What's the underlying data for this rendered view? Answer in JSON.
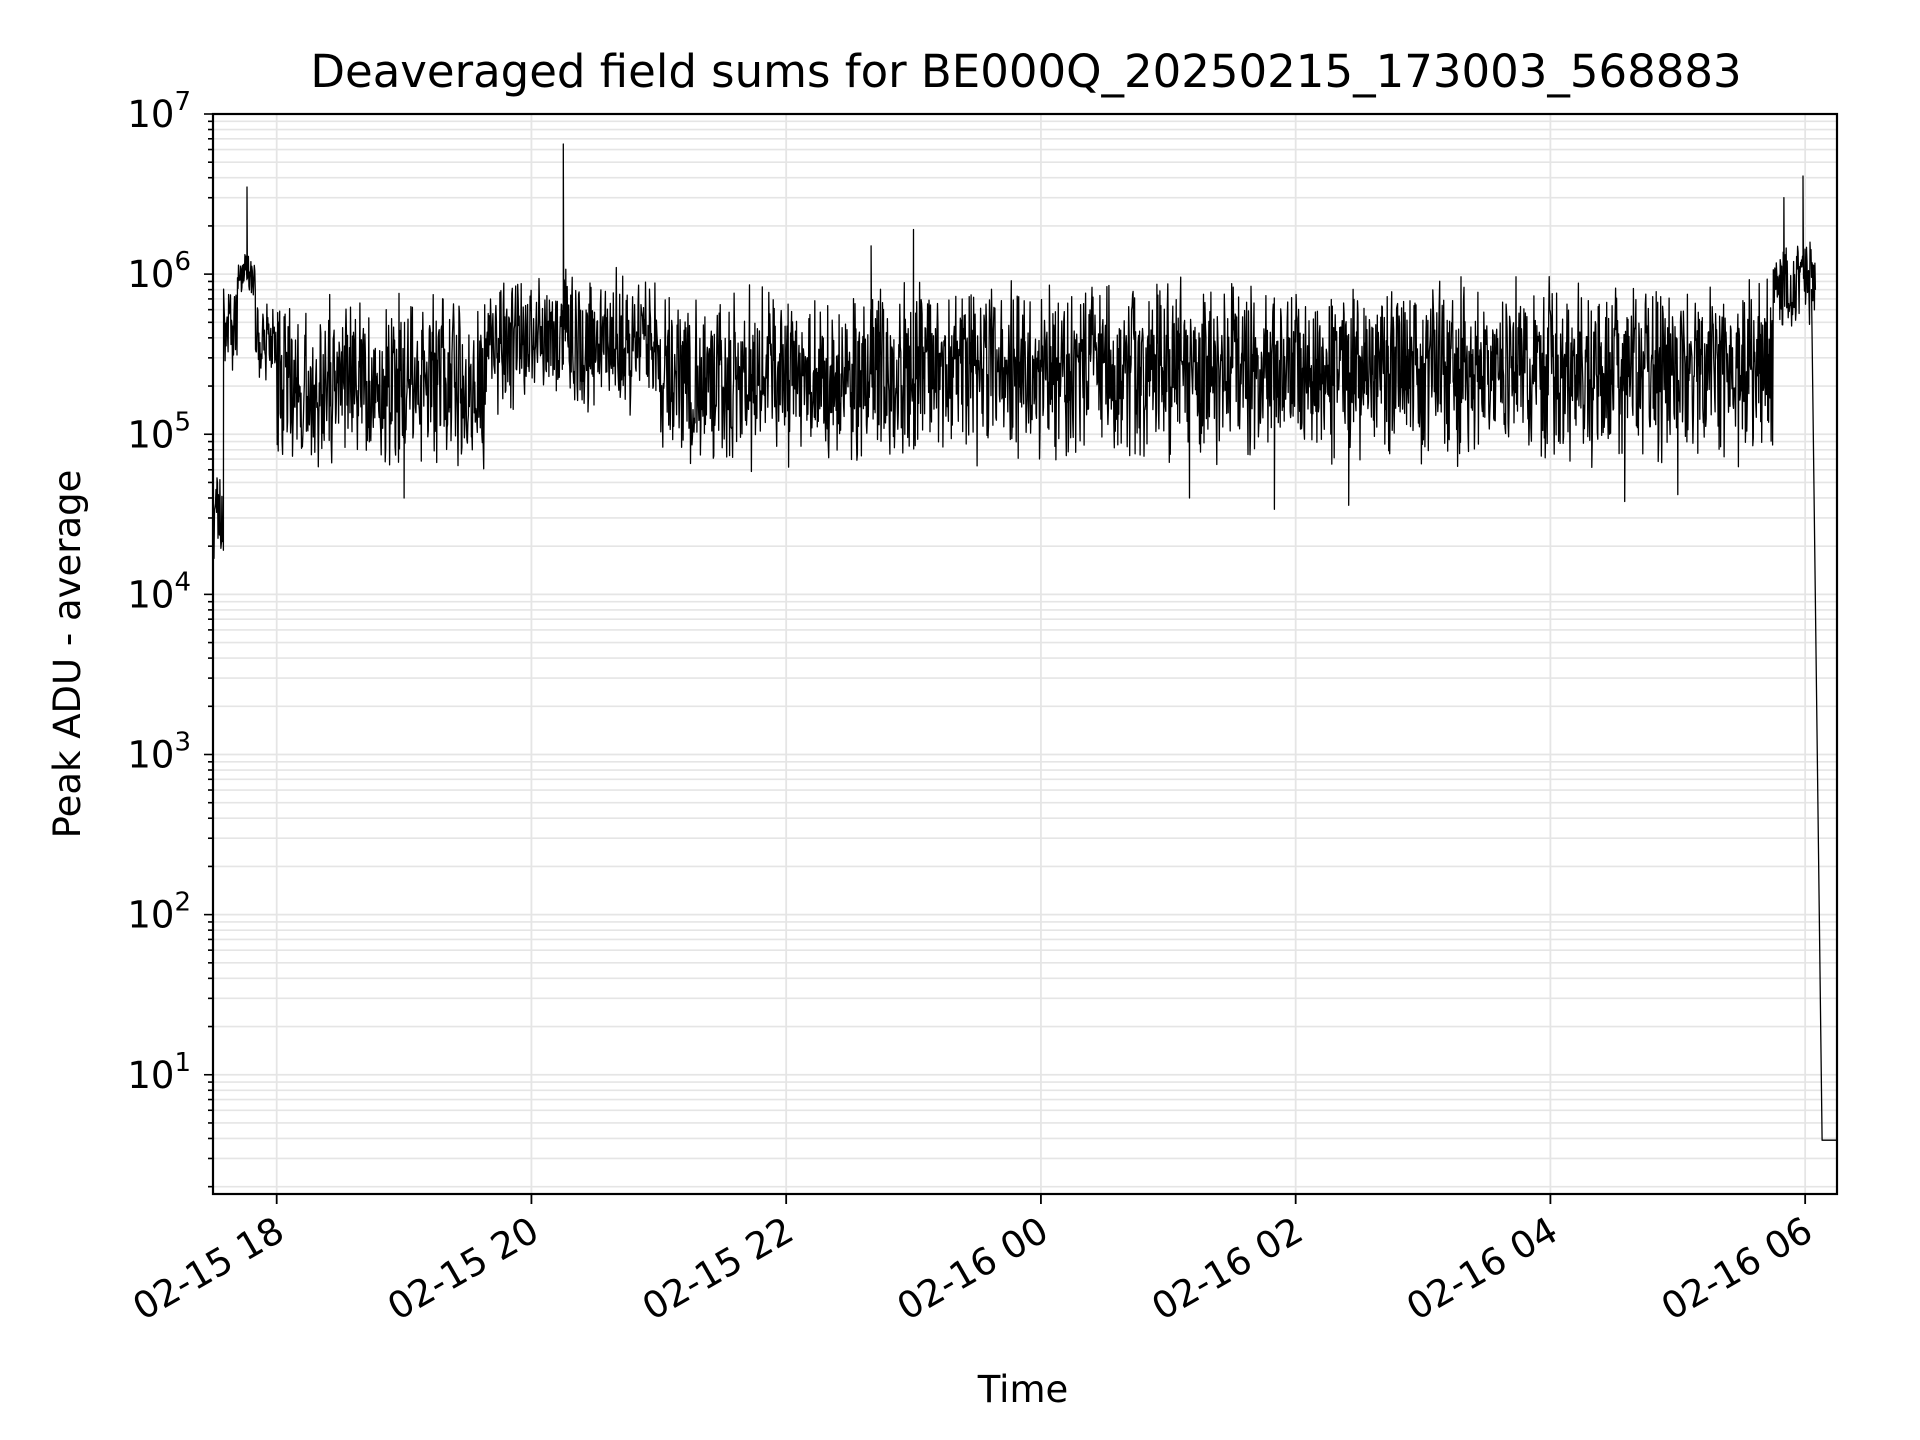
{
  "chart_data": {
    "type": "line",
    "title": "Deaveraged field sums for BE000Q_20250215_173003_568883",
    "xlabel": "Time",
    "ylabel": "Peak ADU - average",
    "yscale": "log",
    "xlim": [
      "2025-02-15 17:30",
      "2025-02-16 06:15"
    ],
    "ylim": [
      1.8,
      10000000
    ],
    "grid": true,
    "line_color": "#000000",
    "grid_color": "#e5e5e5",
    "x_ticks": [
      {
        "value": "2025-02-15 18:00",
        "label": "02-15 18"
      },
      {
        "value": "2025-02-15 20:00",
        "label": "02-15 20"
      },
      {
        "value": "2025-02-15 22:00",
        "label": "02-15 22"
      },
      {
        "value": "2025-02-16 00:00",
        "label": "02-16 00"
      },
      {
        "value": "2025-02-16 02:00",
        "label": "02-16 02"
      },
      {
        "value": "2025-02-16 04:00",
        "label": "02-16 04"
      },
      {
        "value": "2025-02-16 06:00",
        "label": "02-16 06"
      }
    ],
    "y_ticks": [
      {
        "value": 10,
        "base": "10",
        "exp": "1"
      },
      {
        "value": 100,
        "base": "10",
        "exp": "2"
      },
      {
        "value": 1000,
        "base": "10",
        "exp": "3"
      },
      {
        "value": 10000,
        "base": "10",
        "exp": "4"
      },
      {
        "value": 100000,
        "base": "10",
        "exp": "5"
      },
      {
        "value": 1000000,
        "base": "10",
        "exp": "6"
      },
      {
        "value": 10000000,
        "base": "10",
        "exp": "7"
      }
    ],
    "series": [
      {
        "style": "noisy-band",
        "segments": [
          {
            "x_start": "2025-02-15 17:30",
            "x_end": "2025-02-15 17:35",
            "low": 15000,
            "high": 60000
          },
          {
            "x_start": "2025-02-15 17:35",
            "x_end": "2025-02-15 17:42",
            "low": 200000,
            "high": 1400000
          },
          {
            "x_start": "2025-02-15 17:42",
            "x_end": "2025-02-15 17:50",
            "low": 700000,
            "high": 1400000
          },
          {
            "x_start": "2025-02-15 17:50",
            "x_end": "2025-02-15 18:00",
            "low": 200000,
            "high": 700000
          },
          {
            "x_start": "2025-02-15 18:00",
            "x_end": "2025-02-15 19:40",
            "low": 55000,
            "high": 900000
          },
          {
            "x_start": "2025-02-15 19:40",
            "x_end": "2025-02-15 21:00",
            "low": 120000,
            "high": 1200000
          },
          {
            "x_start": "2025-02-15 21:00",
            "x_end": "2025-02-15 22:40",
            "low": 55000,
            "high": 900000
          },
          {
            "x_start": "2025-02-15 22:40",
            "x_end": "2025-02-16 05:45",
            "low": 60000,
            "high": 1000000
          },
          {
            "x_start": "2025-02-16 05:45",
            "x_end": "2025-02-16 06:05",
            "low": 400000,
            "high": 1800000
          }
        ],
        "spikes": [
          {
            "x": "2025-02-15 17:46",
            "y": 3500000
          },
          {
            "x": "2025-02-15 20:15",
            "y": 6500000
          },
          {
            "x": "2025-02-15 22:40",
            "y": 1500000
          },
          {
            "x": "2025-02-15 23:00",
            "y": 1900000
          },
          {
            "x": "2025-02-16 05:50",
            "y": 3000000
          },
          {
            "x": "2025-02-16 05:59",
            "y": 4100000
          }
        ],
        "dips": [
          {
            "x": "2025-02-15 19:00",
            "y": 40000
          },
          {
            "x": "2025-02-16 01:10",
            "y": 40000
          },
          {
            "x": "2025-02-16 01:50",
            "y": 34000
          },
          {
            "x": "2025-02-16 02:25",
            "y": 36000
          },
          {
            "x": "2025-02-16 04:35",
            "y": 38000
          },
          {
            "x": "2025-02-16 05:00",
            "y": 42000
          }
        ],
        "tail": [
          {
            "x": "2025-02-16 06:03",
            "y": 800000
          },
          {
            "x": "2025-02-16 06:08",
            "y": 3.9
          },
          {
            "x": "2025-02-16 06:15",
            "y": 3.9
          }
        ]
      }
    ]
  }
}
